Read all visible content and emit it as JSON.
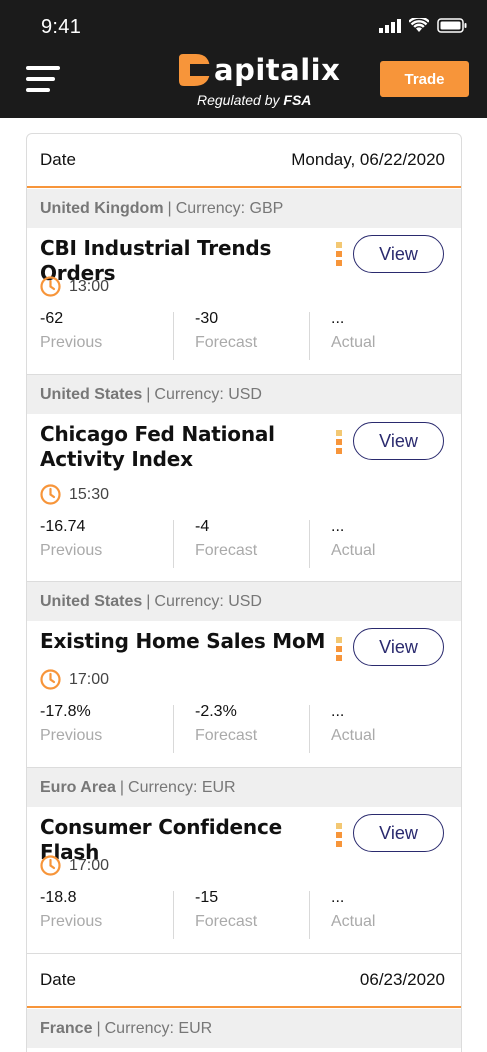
{
  "status_bar": {
    "time": "9:41"
  },
  "header": {
    "logo_text": "apitalix",
    "regulated_prefix": "Regulated by",
    "regulated_by": "FSA",
    "trade_label": "Trade",
    "brand_color": "#f7953a"
  },
  "calendar": {
    "date_label": "Date",
    "dates": [
      "Monday, 06/22/2020",
      "06/23/2020"
    ],
    "stat_labels": {
      "previous": "Previous",
      "forecast": "Forecast",
      "actual": "Actual"
    },
    "view_label": "View",
    "events": [
      {
        "country": "United Kingdom",
        "currency": "Currency: GBP",
        "title": "CBI Industrial Trends Orders",
        "time": "13:00",
        "previous": "-62",
        "forecast": "-30",
        "actual": "..."
      },
      {
        "country": "United States",
        "currency": "Currency: USD",
        "title": "Chicago Fed National Activity Index",
        "time": "15:30",
        "previous": "-16.74",
        "forecast": "-4",
        "actual": "..."
      },
      {
        "country": "United States",
        "currency": "Currency: USD",
        "title": "Existing Home Sales MoM",
        "time": "17:00",
        "previous": "-17.8%",
        "forecast": "-2.3%",
        "actual": "..."
      },
      {
        "country": "Euro Area",
        "currency": "Currency: EUR",
        "title": "Consumer Confidence Flash",
        "time": "17:00",
        "previous": "-18.8",
        "forecast": "-15",
        "actual": "..."
      }
    ],
    "next_region": {
      "country": "France",
      "currency": "Currency: EUR"
    }
  }
}
